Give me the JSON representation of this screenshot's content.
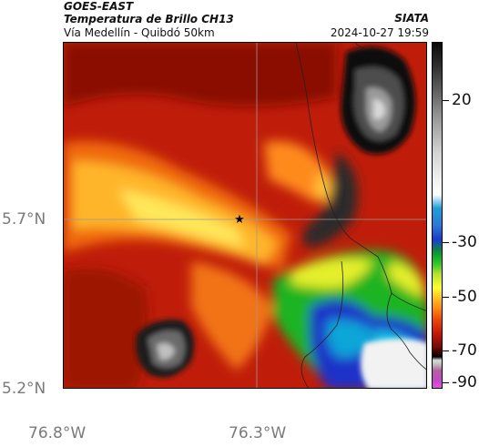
{
  "header": {
    "satellite": "GOES-EAST",
    "product": "Temperatura de Brillo CH13",
    "region": "Vía Medellín - Quibdó 50km",
    "source": "SIATA",
    "datetime": "2024-10-27 19:59"
  },
  "axes": {
    "lat_ticks": [
      "5.7°N",
      "5.2°N"
    ],
    "lon_ticks": [
      "76.8°W",
      "76.3°W"
    ]
  },
  "colorbar": {
    "ticks": [
      "20",
      "-30",
      "-50",
      "-70",
      "-90"
    ]
  },
  "colors": {
    "warm_red": "#c2200c",
    "cold_white": "#ffffff",
    "gridline": "#9a9a9a"
  }
}
